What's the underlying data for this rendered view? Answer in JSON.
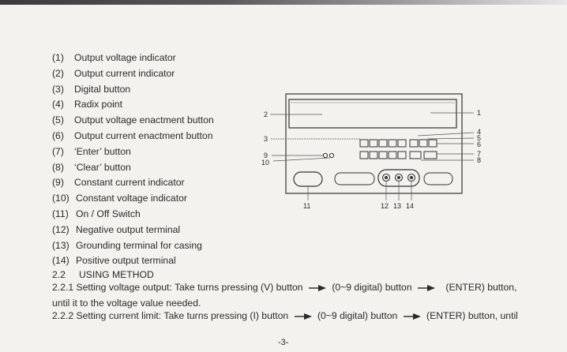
{
  "legend": [
    {
      "num": "(1)",
      "label": "Output voltage indicator"
    },
    {
      "num": "(2)",
      "label": "Output current indicator"
    },
    {
      "num": "(3)",
      "label": "Digital button"
    },
    {
      "num": "(4)",
      "label": "Radix point"
    },
    {
      "num": "(5)",
      "label": "Output voltage enactment button"
    },
    {
      "num": "(6)",
      "label": "Output current enactment button"
    },
    {
      "num": "(7)",
      "label": "‘Enter’ button"
    },
    {
      "num": "(8)",
      "label": "‘Clear’ button"
    },
    {
      "num": "(9)",
      "label": "Constant current indicator"
    },
    {
      "num": "(10)",
      "label": "Constant voltage indicator"
    },
    {
      "num": "(11)",
      "label": "On / Off Switch"
    },
    {
      "num": "(12)",
      "label": "Negative output terminal"
    },
    {
      "num": "(13)",
      "label": "Grounding terminal for casing"
    },
    {
      "num": "(14)",
      "label": "Positive output terminal"
    }
  ],
  "section": {
    "num": "2.2",
    "title": "USING METHOD"
  },
  "para1": {
    "part1": "2.2.1   Setting voltage output: Take turns pressing (V) button",
    "part2": "(0~9 digital) button",
    "part3": "(ENTER) button,",
    "line2": "until it to the voltage value needed."
  },
  "para2": {
    "part1": "2.2.2   Setting current limit: Take turns pressing (I) button",
    "part2": "(0~9 digital) button",
    "part3": "(ENTER) button, until"
  },
  "page_number": "-3-",
  "diagram_labels": {
    "l1": "1",
    "l2": "2",
    "l3": "3",
    "l4": "4",
    "l5": "5",
    "l6": "6",
    "l7": "7",
    "l8": "8",
    "l9": "9",
    "l10": "10",
    "l11": "11",
    "l12": "12",
    "l13": "13",
    "l14": "14"
  }
}
